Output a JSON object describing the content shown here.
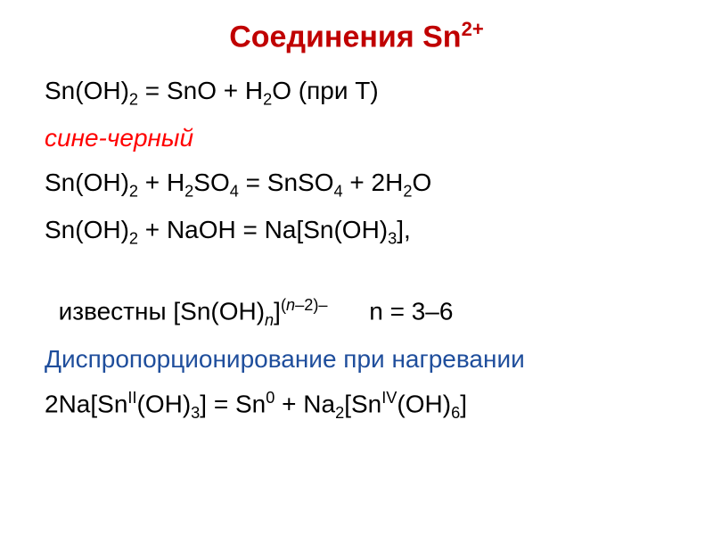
{
  "colors": {
    "title": "#c00000",
    "blue_black": "#1f4e9c",
    "red_italic": "#ff0000",
    "blue_disprop": "#1f4e9c",
    "body_text": "#000000"
  },
  "fonts": {
    "title_size": 34,
    "body_size": 28,
    "family": "Arial"
  },
  "title": {
    "t1": "Соединения Sn",
    "t2": "2+"
  },
  "eq1": {
    "a": "Sn(OH)",
    "b": "2",
    "c": " = SnO + H",
    "d": "2",
    "e": "O (при T)"
  },
  "blue_black": "сине-черный",
  "eq2": {
    "a": "Sn(OH)",
    "b": "2",
    "c": " + H",
    "d": "2",
    "e": "SO",
    "f": "4",
    "g": " = SnSO",
    "h": "4",
    "i": " + 2H",
    "j": "2",
    "k": "O"
  },
  "eq3": {
    "a": "Sn(OH)",
    "b": "2",
    "c": " + NaOH = Na[Sn(OH)",
    "d": "3",
    "e": "],"
  },
  "eq4": {
    "a": "известны [Sn(OH)",
    "b": "n",
    "c": "]",
    "d": "(",
    "e": "n",
    "f": "–2)–",
    "g": "      n = 3–6"
  },
  "disprop": "Диспропорционирование при нагревании",
  "eq5": {
    "a": "2Na[Sn",
    "b": "II",
    "c": "(OH)",
    "d": "3",
    "e": "] = Sn",
    "f": "0",
    "g": " + Na",
    "h": "2",
    "i": "[Sn",
    "j": "IV",
    "k": "(OH)",
    "l": "6",
    "m": "]"
  }
}
